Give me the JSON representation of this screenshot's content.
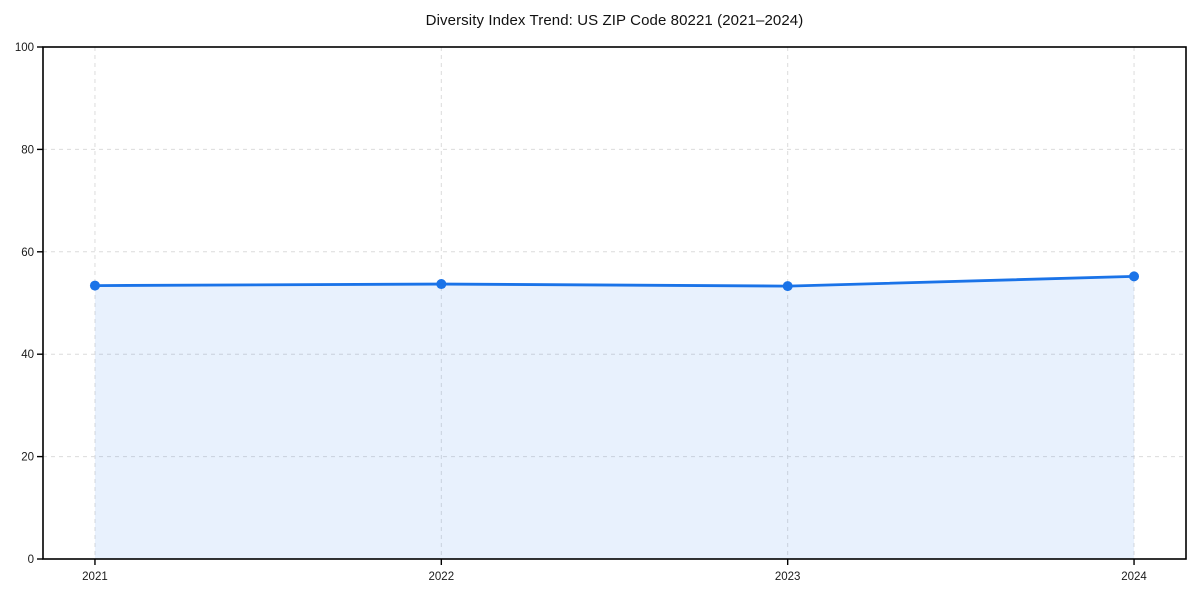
{
  "chart_data": {
    "type": "area",
    "title": "Diversity Index Trend: US ZIP Code 80221 (2021–2024)",
    "x": [
      "2021",
      "2022",
      "2023",
      "2024"
    ],
    "series": [
      {
        "name": "Diversity Index",
        "values": [
          53.4,
          53.7,
          53.3,
          55.2
        ]
      }
    ],
    "xlabel": "",
    "ylabel": "",
    "ylim": [
      0,
      100
    ],
    "yticks": [
      0,
      20,
      40,
      60,
      80,
      100
    ],
    "grid": "on",
    "grid_style": "dashed",
    "legend_position": "none",
    "line_color": "#1a73e8",
    "fill_color": "rgba(26,115,232,0.10)",
    "marker": "circle",
    "grid_color": "#dcdcdc",
    "axis_color": "#000000"
  }
}
